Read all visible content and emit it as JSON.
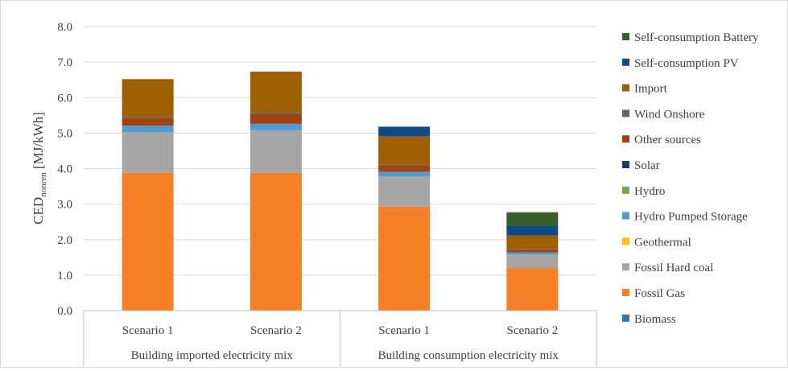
{
  "chart_data": {
    "type": "bar",
    "stacked": true,
    "ylabel": {
      "main": "CED",
      "sub": "nonren",
      "unit": " [MJ/kWh]"
    },
    "ylim": [
      0,
      8
    ],
    "y_ticks": [
      "0.0",
      "1.0",
      "2.0",
      "3.0",
      "4.0",
      "5.0",
      "6.0",
      "7.0",
      "8.0"
    ],
    "grid": "horizontal",
    "legend_position": "right",
    "categories": [
      "Scenario 1",
      "Scenario 2",
      "Scenario 1",
      "Scenario 2"
    ],
    "groups": [
      {
        "label": "Building imported electricity mix",
        "span": [
          0,
          1
        ]
      },
      {
        "label": "Building consumption electricity mix",
        "span": [
          2,
          3
        ]
      }
    ],
    "series": [
      {
        "name": "Biomass",
        "color": "#2e75b6",
        "values": [
          0.0,
          0.0,
          0.0,
          0.0
        ]
      },
      {
        "name": "Fossil Gas",
        "color": "#f58025",
        "values": [
          3.88,
          3.88,
          2.93,
          1.2
        ]
      },
      {
        "name": "Fossil Hard coal",
        "color": "#a5a5a5",
        "values": [
          1.15,
          1.2,
          0.85,
          0.38
        ]
      },
      {
        "name": "Geothermal",
        "color": "#ffc000",
        "values": [
          0.0,
          0.0,
          0.0,
          0.0
        ]
      },
      {
        "name": "Hydro Pumped Storage",
        "color": "#4a9bd6",
        "values": [
          0.18,
          0.18,
          0.13,
          0.06
        ]
      },
      {
        "name": "Hydro",
        "color": "#70ad47",
        "values": [
          0.0,
          0.0,
          0.0,
          0.0
        ]
      },
      {
        "name": "Solar",
        "color": "#1f3a73",
        "values": [
          0.0,
          0.0,
          0.0,
          0.0
        ]
      },
      {
        "name": "Other sources",
        "color": "#a5410c",
        "values": [
          0.22,
          0.27,
          0.17,
          0.08
        ]
      },
      {
        "name": "Wind Onshore",
        "color": "#636363",
        "values": [
          0.04,
          0.05,
          0.03,
          0.02
        ]
      },
      {
        "name": "Import",
        "color": "#9e5f00",
        "values": [
          1.05,
          1.15,
          0.8,
          0.38
        ]
      },
      {
        "name": "Self-consumption PV",
        "color": "#0e4a8a",
        "values": [
          0.0,
          0.0,
          0.27,
          0.27
        ]
      },
      {
        "name": "Self-consumption Battery",
        "color": "#38602a",
        "values": [
          0.0,
          0.0,
          0.0,
          0.38
        ]
      }
    ]
  }
}
